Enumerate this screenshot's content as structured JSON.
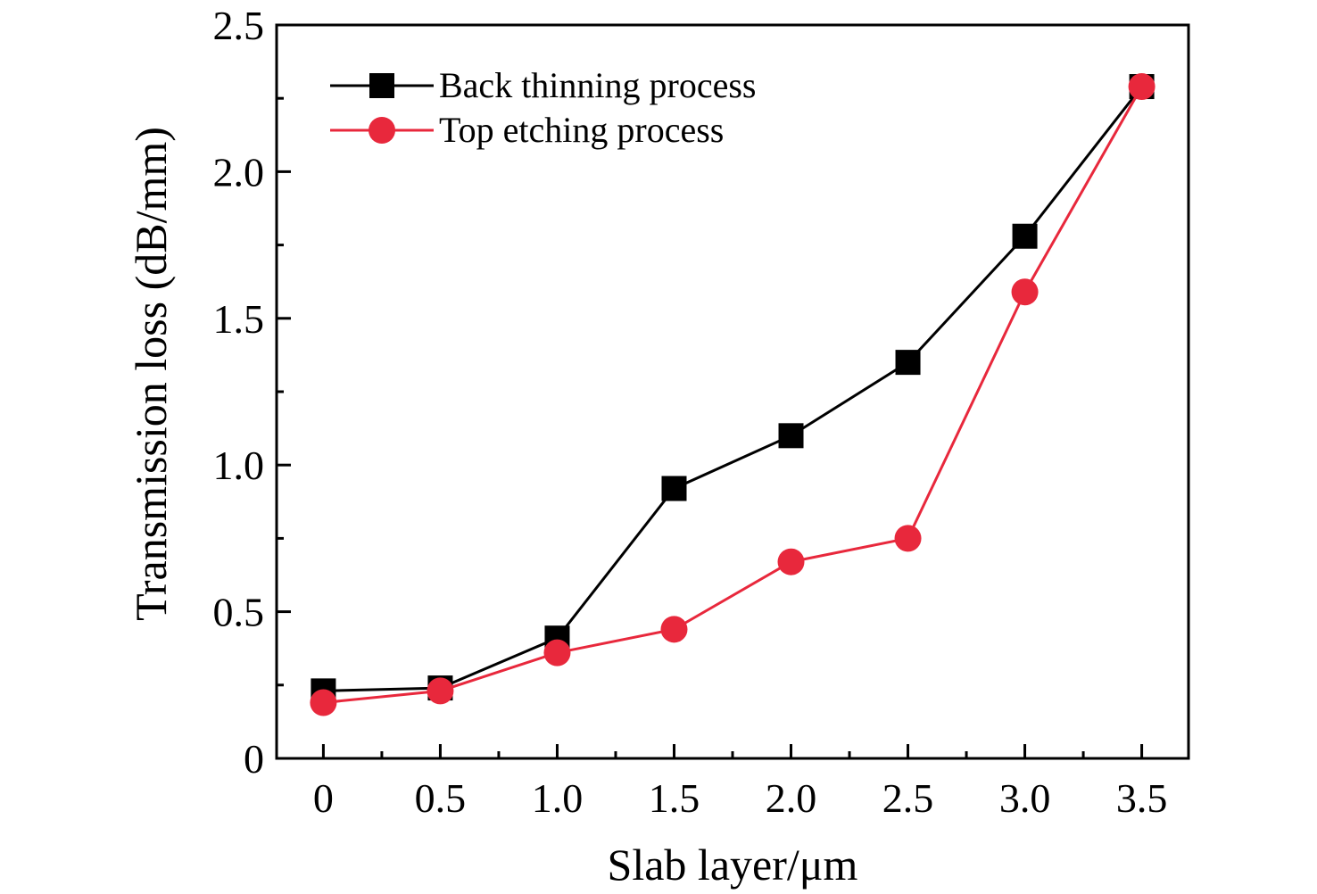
{
  "chart_data": {
    "type": "line",
    "title": "",
    "xlabel": "Slab layer/μm",
    "ylabel": "Transmission loss (dB/mm)",
    "x": [
      0,
      0.5,
      1.0,
      1.5,
      2.0,
      2.5,
      3.0,
      3.5
    ],
    "x_tick_labels": [
      "0",
      "0.5",
      "1.0",
      "1.5",
      "2.0",
      "2.5",
      "3.0",
      "3.5"
    ],
    "y_tick_labels": [
      "0",
      "0.5",
      "1.0",
      "1.5",
      "2.0",
      "2.5"
    ],
    "xlim": [
      -0.2,
      3.7
    ],
    "ylim": [
      0,
      2.5
    ],
    "grid": false,
    "legend_position": "top-left",
    "series": [
      {
        "name": "Back thinning process",
        "marker": "square",
        "color": "#000000",
        "values": [
          0.23,
          0.24,
          0.41,
          0.92,
          1.1,
          1.35,
          1.78,
          2.29
        ]
      },
      {
        "name": "Top etching process",
        "marker": "circle",
        "color": "#e8283c",
        "values": [
          0.19,
          0.23,
          0.36,
          0.44,
          0.67,
          0.75,
          1.59,
          2.29
        ]
      }
    ]
  }
}
